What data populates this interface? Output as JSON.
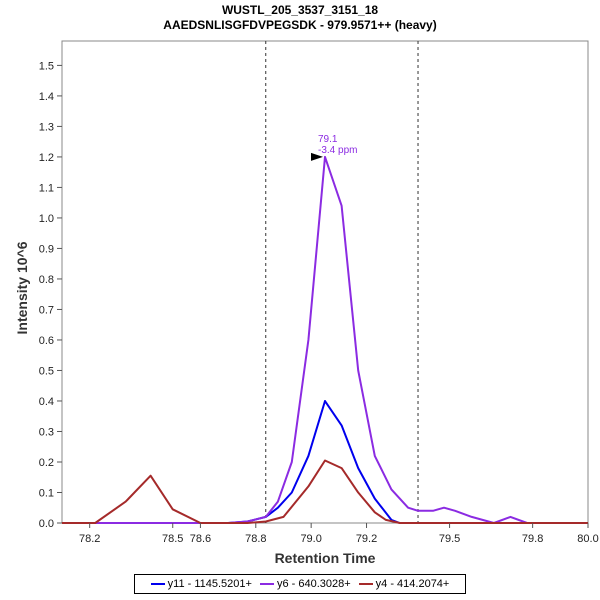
{
  "chart_data": {
    "type": "line",
    "title": "WUSTL_205_3537_3151_18",
    "subtitle": "AAEDSNLISGFDVPEGSDK - 979.9571++ (heavy)",
    "xlabel": "Retention Time",
    "ylabel": "Intensity 10^6",
    "xlim": [
      78.1,
      80.0
    ],
    "ylim": [
      0,
      1.58
    ],
    "x_ticks": [
      78.2,
      78.5,
      78.6,
      78.8,
      79.0,
      79.2,
      79.5,
      79.8,
      80.0
    ],
    "x_tick_labels": [
      "78.2",
      "78.5",
      "78.6",
      "78.8",
      "79.0",
      "79.2",
      "79.5",
      "79.8",
      "80.0"
    ],
    "y_ticks": [
      0.0,
      0.1,
      0.2,
      0.3,
      0.4,
      0.5,
      0.6,
      0.7,
      0.8,
      0.9,
      1.0,
      1.1,
      1.2,
      1.3,
      1.4,
      1.5
    ],
    "y_tick_labels": [
      "0.0",
      "0.1",
      "0.2",
      "0.3",
      "0.4",
      "0.5",
      "0.6",
      "0.7",
      "0.8",
      "0.9",
      "1.0",
      "1.1",
      "1.2",
      "1.3",
      "1.4",
      "1.5"
    ],
    "vlines": [
      78.836,
      79.386
    ],
    "grid": false,
    "legend_position": "bottom",
    "annotation": {
      "x": 79.05,
      "y": 1.2,
      "line1": "79.1",
      "line2": "-3.4 ppm",
      "color": "#8b2be2"
    },
    "series": [
      {
        "name": "y11 - 1145.5201+",
        "color": "#0000ee",
        "x": [
          78.1,
          78.22,
          78.42,
          78.5,
          78.6,
          78.7,
          78.77,
          78.836,
          78.88,
          78.93,
          78.99,
          79.05,
          79.11,
          79.17,
          79.23,
          79.29,
          79.32,
          79.386,
          79.5,
          79.6,
          79.7,
          79.8,
          80.0
        ],
        "y": [
          0,
          0,
          0,
          0,
          0,
          0,
          0.005,
          0.02,
          0.05,
          0.1,
          0.22,
          0.4,
          0.32,
          0.18,
          0.08,
          0.01,
          0,
          0,
          0,
          0,
          0,
          0,
          0
        ]
      },
      {
        "name": "y6 - 640.3028+",
        "color": "#8b2be2",
        "x": [
          78.1,
          78.22,
          78.42,
          78.5,
          78.6,
          78.7,
          78.77,
          78.836,
          78.88,
          78.93,
          78.99,
          79.05,
          79.11,
          79.17,
          79.23,
          79.29,
          79.35,
          79.386,
          79.44,
          79.48,
          79.52,
          79.58,
          79.66,
          79.72,
          79.78,
          79.84,
          80.0
        ],
        "y": [
          0,
          0,
          0,
          0,
          0,
          0,
          0.005,
          0.02,
          0.07,
          0.2,
          0.6,
          1.2,
          1.04,
          0.5,
          0.22,
          0.11,
          0.05,
          0.04,
          0.04,
          0.05,
          0.04,
          0.02,
          0,
          0.02,
          0,
          0,
          0
        ]
      },
      {
        "name": "y4 - 414.2074+",
        "color": "#a52a2a",
        "x": [
          78.1,
          78.22,
          78.33,
          78.42,
          78.5,
          78.6,
          78.7,
          78.77,
          78.836,
          78.9,
          78.99,
          79.05,
          79.11,
          79.17,
          79.23,
          79.27,
          79.32,
          79.386,
          79.5,
          79.6,
          79.7,
          79.8,
          80.0
        ],
        "y": [
          0,
          0,
          0.07,
          0.155,
          0.045,
          0,
          0,
          0,
          0.005,
          0.02,
          0.12,
          0.205,
          0.18,
          0.1,
          0.035,
          0.01,
          0,
          0,
          0,
          0,
          0,
          0,
          0
        ]
      }
    ]
  }
}
